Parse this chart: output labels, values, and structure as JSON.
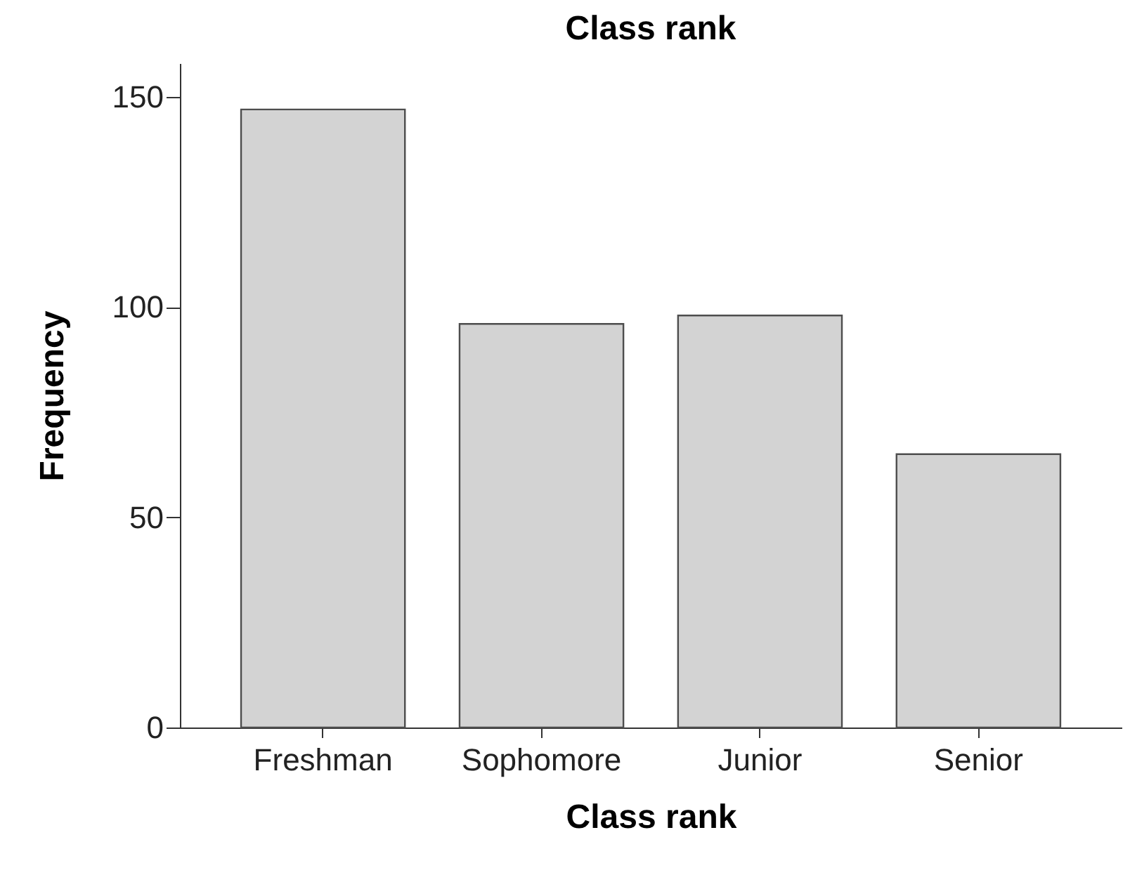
{
  "chart_data": {
    "type": "bar",
    "title": "Class rank",
    "xlabel": "Class rank",
    "ylabel": "Frequency",
    "categories": [
      "Freshman",
      "Sophomore",
      "Junior",
      "Senior"
    ],
    "values": [
      147,
      96,
      98,
      65
    ],
    "color": "#d3d3d3",
    "ylim": [
      0,
      158
    ],
    "yticks": [
      0,
      50,
      100,
      150
    ],
    "grid": false
  }
}
